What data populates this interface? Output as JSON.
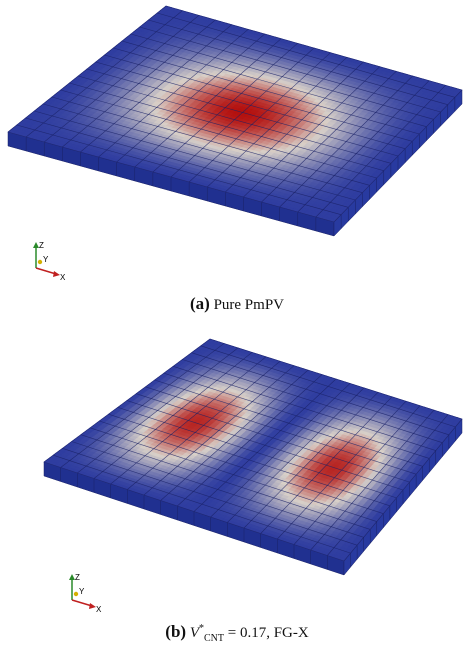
{
  "panels": [
    {
      "id": "a",
      "caption_label": "(a)",
      "caption_text": "Pure PmPV"
    },
    {
      "id": "b",
      "caption_label": "(b)",
      "caption_symbol": "V",
      "caption_sup": "*",
      "caption_sub": "CNT",
      "caption_text": " = 0.17, FG-X"
    }
  ],
  "axes_triad": {
    "z_label": "Z",
    "y_label": "Y",
    "x_label": "X"
  },
  "colors": {
    "low": "#2f3da0",
    "mid": "#d8d0c8",
    "high": "#b3100e",
    "grid": "#1a2266",
    "side": "#203090"
  },
  "mesh": {
    "divisions": 18
  }
}
